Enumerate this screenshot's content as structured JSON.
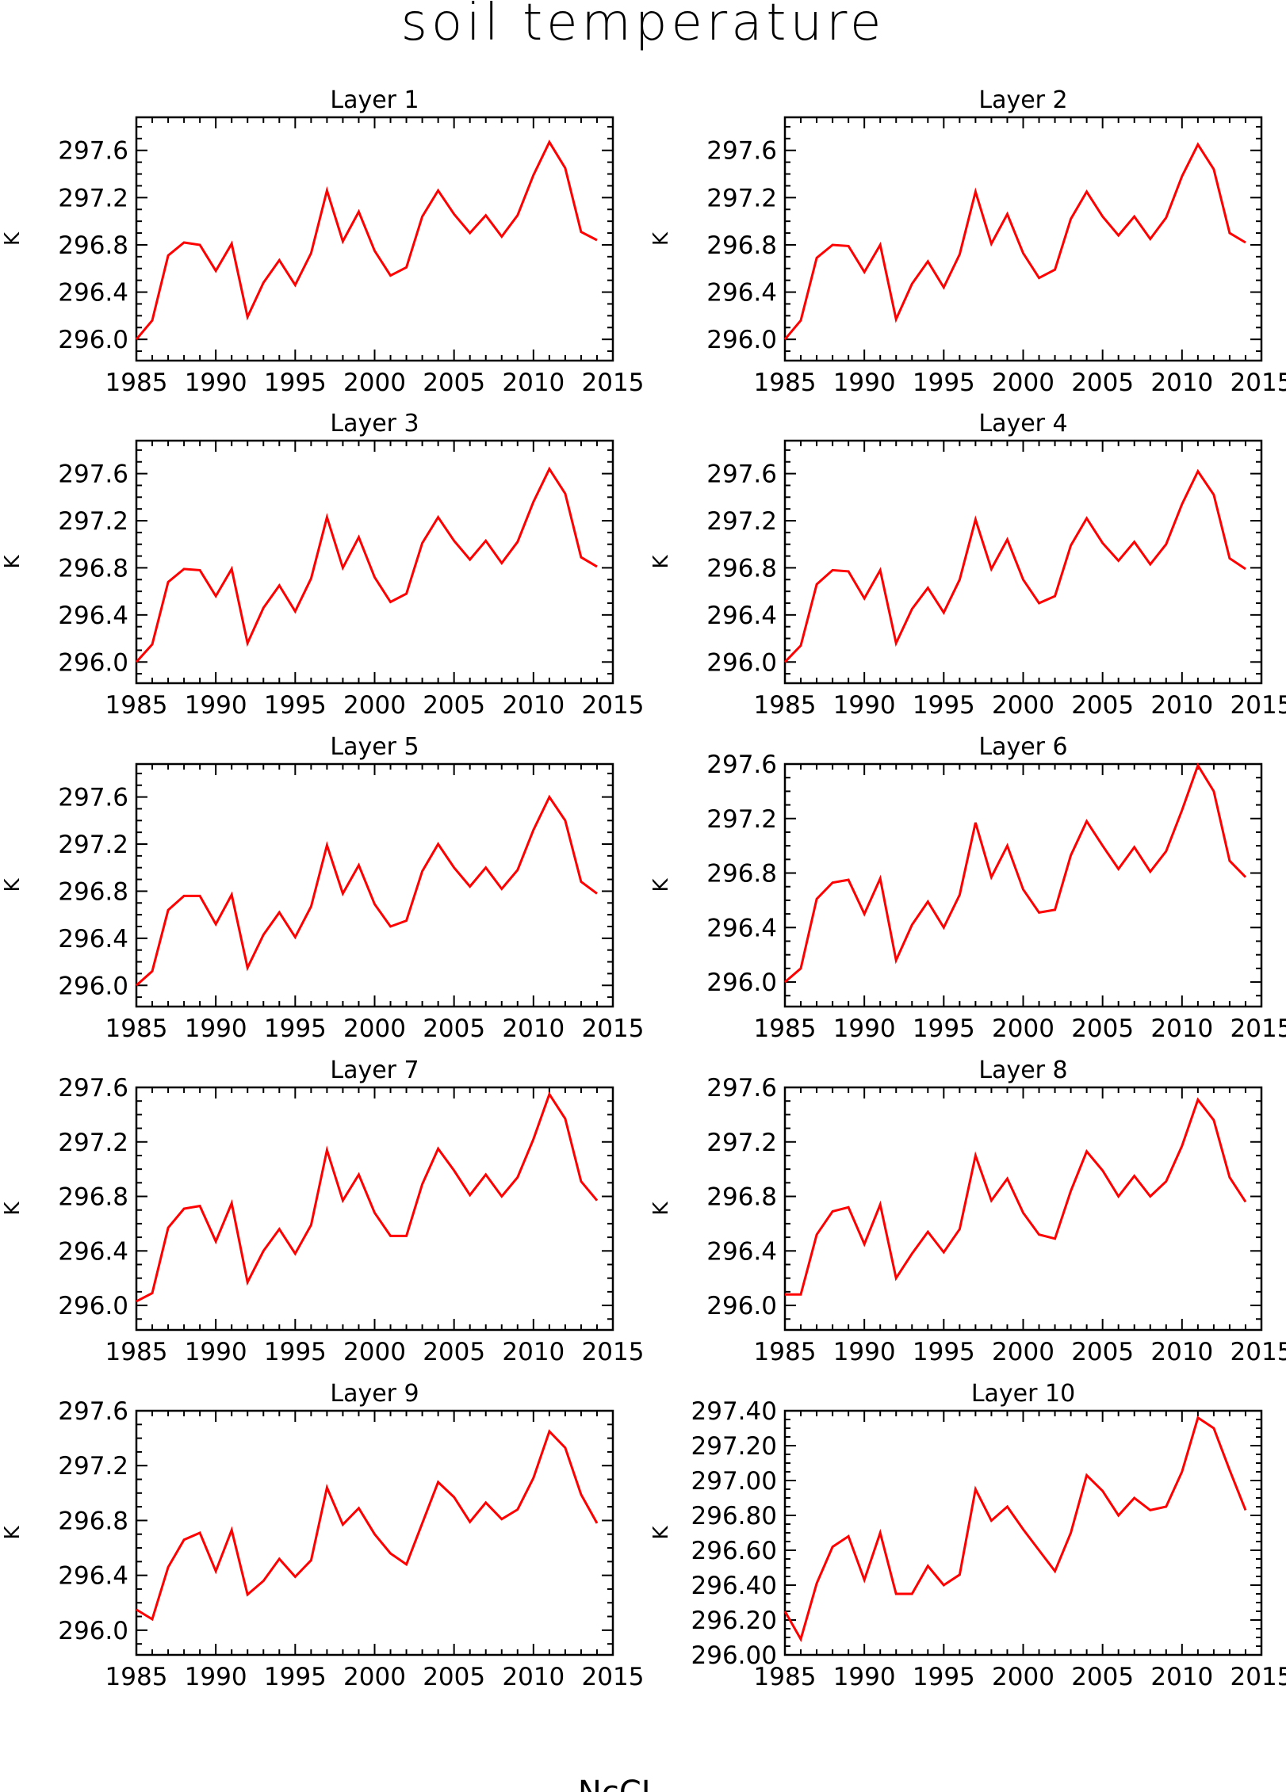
{
  "title": "soil temperature",
  "footer": "NcCL",
  "colors": {
    "line": "#ff0000",
    "axis": "#000000"
  },
  "chart_data": [
    {
      "type": "line",
      "title": "Layer 1",
      "ylabel": "K",
      "xlim": [
        1985,
        2015
      ],
      "ylim": [
        295.82,
        297.88
      ],
      "xticks": [
        1985,
        1990,
        1995,
        2000,
        2005,
        2010,
        2015
      ],
      "yticks": [
        296.0,
        296.4,
        296.8,
        297.2,
        297.6
      ],
      "ytick_labels": [
        "296.0",
        "296.4",
        "296.8",
        "297.2",
        "297.6"
      ],
      "x": [
        1985,
        1986,
        1987,
        1988,
        1989,
        1990,
        1991,
        1992,
        1993,
        1994,
        1995,
        1996,
        1997,
        1998,
        1999,
        2000,
        2001,
        2002,
        2003,
        2004,
        2005,
        2006,
        2007,
        2008,
        2009,
        2010,
        2011,
        2012,
        2013,
        2014
      ],
      "values": [
        296.0,
        296.16,
        296.71,
        296.82,
        296.8,
        296.58,
        296.81,
        296.19,
        296.48,
        296.67,
        296.46,
        296.73,
        297.26,
        296.83,
        297.08,
        296.75,
        296.54,
        296.61,
        297.04,
        297.26,
        297.06,
        296.9,
        297.05,
        296.87,
        297.05,
        297.39,
        297.67,
        297.45,
        296.91,
        296.84
      ]
    },
    {
      "type": "line",
      "title": "Layer 2",
      "ylabel": "K",
      "xlim": [
        1985,
        2015
      ],
      "ylim": [
        295.82,
        297.88
      ],
      "xticks": [
        1985,
        1990,
        1995,
        2000,
        2005,
        2010,
        2015
      ],
      "yticks": [
        296.0,
        296.4,
        296.8,
        297.2,
        297.6
      ],
      "ytick_labels": [
        "296.0",
        "296.4",
        "296.8",
        "297.2",
        "297.6"
      ],
      "x": [
        1985,
        1986,
        1987,
        1988,
        1989,
        1990,
        1991,
        1992,
        1993,
        1994,
        1995,
        1996,
        1997,
        1998,
        1999,
        2000,
        2001,
        2002,
        2003,
        2004,
        2005,
        2006,
        2007,
        2008,
        2009,
        2010,
        2011,
        2012,
        2013,
        2014
      ],
      "values": [
        296.0,
        296.16,
        296.69,
        296.8,
        296.79,
        296.57,
        296.8,
        296.17,
        296.47,
        296.66,
        296.44,
        296.72,
        297.25,
        296.81,
        297.06,
        296.73,
        296.52,
        296.59,
        297.02,
        297.25,
        297.04,
        296.88,
        297.04,
        296.85,
        297.03,
        297.38,
        297.65,
        297.44,
        296.9,
        296.82
      ]
    },
    {
      "type": "line",
      "title": "Layer 3",
      "ylabel": "K",
      "xlim": [
        1985,
        2015
      ],
      "ylim": [
        295.82,
        297.88
      ],
      "xticks": [
        1985,
        1990,
        1995,
        2000,
        2005,
        2010,
        2015
      ],
      "yticks": [
        296.0,
        296.4,
        296.8,
        297.2,
        297.6
      ],
      "ytick_labels": [
        "296.0",
        "296.4",
        "296.8",
        "297.2",
        "297.6"
      ],
      "x": [
        1985,
        1986,
        1987,
        1988,
        1989,
        1990,
        1991,
        1992,
        1993,
        1994,
        1995,
        1996,
        1997,
        1998,
        1999,
        2000,
        2001,
        2002,
        2003,
        2004,
        2005,
        2006,
        2007,
        2008,
        2009,
        2010,
        2011,
        2012,
        2013,
        2014
      ],
      "values": [
        296.0,
        296.15,
        296.68,
        296.79,
        296.78,
        296.56,
        296.79,
        296.16,
        296.46,
        296.65,
        296.43,
        296.71,
        297.23,
        296.8,
        297.06,
        296.72,
        296.51,
        296.58,
        297.01,
        297.23,
        297.03,
        296.87,
        297.03,
        296.84,
        297.02,
        297.36,
        297.64,
        297.43,
        296.89,
        296.81
      ]
    },
    {
      "type": "line",
      "title": "Layer 4",
      "ylabel": "K",
      "xlim": [
        1985,
        2015
      ],
      "ylim": [
        295.82,
        297.88
      ],
      "xticks": [
        1985,
        1990,
        1995,
        2000,
        2005,
        2010,
        2015
      ],
      "yticks": [
        296.0,
        296.4,
        296.8,
        297.2,
        297.6
      ],
      "ytick_labels": [
        "296.0",
        "296.4",
        "296.8",
        "297.2",
        "297.6"
      ],
      "x": [
        1985,
        1986,
        1987,
        1988,
        1989,
        1990,
        1991,
        1992,
        1993,
        1994,
        1995,
        1996,
        1997,
        1998,
        1999,
        2000,
        2001,
        2002,
        2003,
        2004,
        2005,
        2006,
        2007,
        2008,
        2009,
        2010,
        2011,
        2012,
        2013,
        2014
      ],
      "values": [
        296.0,
        296.14,
        296.66,
        296.78,
        296.77,
        296.54,
        296.78,
        296.16,
        296.45,
        296.63,
        296.42,
        296.7,
        297.21,
        296.79,
        297.04,
        296.7,
        296.5,
        296.56,
        296.99,
        297.22,
        297.01,
        296.86,
        297.02,
        296.83,
        297.0,
        297.34,
        297.62,
        297.42,
        296.88,
        296.79
      ]
    },
    {
      "type": "line",
      "title": "Layer 5",
      "ylabel": "K",
      "xlim": [
        1985,
        2015
      ],
      "ylim": [
        295.82,
        297.88
      ],
      "xticks": [
        1985,
        1990,
        1995,
        2000,
        2005,
        2010,
        2015
      ],
      "yticks": [
        296.0,
        296.4,
        296.8,
        297.2,
        297.6
      ],
      "ytick_labels": [
        "296.0",
        "296.4",
        "296.8",
        "297.2",
        "297.6"
      ],
      "x": [
        1985,
        1986,
        1987,
        1988,
        1989,
        1990,
        1991,
        1992,
        1993,
        1994,
        1995,
        1996,
        1997,
        1998,
        1999,
        2000,
        2001,
        2002,
        2003,
        2004,
        2005,
        2006,
        2007,
        2008,
        2009,
        2010,
        2011,
        2012,
        2013,
        2014
      ],
      "values": [
        296.0,
        296.12,
        296.64,
        296.76,
        296.76,
        296.52,
        296.77,
        296.15,
        296.43,
        296.62,
        296.41,
        296.67,
        297.19,
        296.78,
        297.02,
        296.69,
        296.5,
        296.55,
        296.97,
        297.2,
        297.0,
        296.84,
        297.0,
        296.82,
        296.98,
        297.32,
        297.6,
        297.4,
        296.88,
        296.78
      ]
    },
    {
      "type": "line",
      "title": "Layer 6",
      "ylabel": "K",
      "xlim": [
        1985,
        2015
      ],
      "ylim": [
        295.82,
        297.6
      ],
      "xticks": [
        1985,
        1990,
        1995,
        2000,
        2005,
        2010,
        2015
      ],
      "yticks": [
        296.0,
        296.4,
        296.8,
        297.2,
        297.6
      ],
      "ytick_labels": [
        "296.0",
        "296.4",
        "296.8",
        "297.2",
        "297.6"
      ],
      "x": [
        1985,
        1986,
        1987,
        1988,
        1989,
        1990,
        1991,
        1992,
        1993,
        1994,
        1995,
        1996,
        1997,
        1998,
        1999,
        2000,
        2001,
        2002,
        2003,
        2004,
        2005,
        2006,
        2007,
        2008,
        2009,
        2010,
        2011,
        2012,
        2013,
        2014
      ],
      "values": [
        296.0,
        296.1,
        296.61,
        296.73,
        296.75,
        296.5,
        296.76,
        296.16,
        296.42,
        296.59,
        296.4,
        296.64,
        297.17,
        296.77,
        297.0,
        296.68,
        296.51,
        296.53,
        296.93,
        297.18,
        297.0,
        296.83,
        296.99,
        296.81,
        296.96,
        297.26,
        297.59,
        297.4,
        296.89,
        296.77
      ]
    },
    {
      "type": "line",
      "title": "Layer 7",
      "ylabel": "K",
      "xlim": [
        1985,
        2015
      ],
      "ylim": [
        295.82,
        297.6
      ],
      "xticks": [
        1985,
        1990,
        1995,
        2000,
        2005,
        2010,
        2015
      ],
      "yticks": [
        296.0,
        296.4,
        296.8,
        297.2,
        297.6
      ],
      "ytick_labels": [
        "296.0",
        "296.4",
        "296.8",
        "297.2",
        "297.6"
      ],
      "x": [
        1985,
        1986,
        1987,
        1988,
        1989,
        1990,
        1991,
        1992,
        1993,
        1994,
        1995,
        1996,
        1997,
        1998,
        1999,
        2000,
        2001,
        2002,
        2003,
        2004,
        2005,
        2006,
        2007,
        2008,
        2009,
        2010,
        2011,
        2012,
        2013,
        2014
      ],
      "values": [
        296.03,
        296.09,
        296.57,
        296.71,
        296.73,
        296.47,
        296.75,
        296.17,
        296.4,
        296.56,
        296.38,
        296.59,
        297.14,
        296.77,
        296.96,
        296.68,
        296.51,
        296.51,
        296.89,
        297.15,
        296.99,
        296.81,
        296.96,
        296.8,
        296.94,
        297.22,
        297.55,
        297.37,
        296.91,
        296.77
      ]
    },
    {
      "type": "line",
      "title": "Layer 8",
      "ylabel": "K",
      "xlim": [
        1985,
        2015
      ],
      "ylim": [
        295.82,
        297.6
      ],
      "xticks": [
        1985,
        1990,
        1995,
        2000,
        2005,
        2010,
        2015
      ],
      "yticks": [
        296.0,
        296.4,
        296.8,
        297.2,
        297.6
      ],
      "ytick_labels": [
        "296.0",
        "296.4",
        "296.8",
        "297.2",
        "297.6"
      ],
      "x": [
        1985,
        1986,
        1987,
        1988,
        1989,
        1990,
        1991,
        1992,
        1993,
        1994,
        1995,
        1996,
        1997,
        1998,
        1999,
        2000,
        2001,
        2002,
        2003,
        2004,
        2005,
        2006,
        2007,
        2008,
        2009,
        2010,
        2011,
        2012,
        2013,
        2014
      ],
      "values": [
        296.08,
        296.08,
        296.52,
        296.69,
        296.72,
        296.45,
        296.74,
        296.2,
        296.38,
        296.54,
        296.39,
        296.56,
        297.1,
        296.77,
        296.93,
        296.68,
        296.52,
        296.49,
        296.84,
        297.13,
        296.99,
        296.8,
        296.95,
        296.8,
        296.91,
        297.17,
        297.51,
        297.36,
        296.94,
        296.76
      ]
    },
    {
      "type": "line",
      "title": "Layer 9",
      "ylabel": "K",
      "xlim": [
        1985,
        2015
      ],
      "ylim": [
        295.82,
        297.6
      ],
      "xticks": [
        1985,
        1990,
        1995,
        2000,
        2005,
        2010,
        2015
      ],
      "yticks": [
        296.0,
        296.4,
        296.8,
        297.2,
        297.6
      ],
      "ytick_labels": [
        "296.0",
        "296.4",
        "296.8",
        "297.2",
        "297.6"
      ],
      "x": [
        1985,
        1986,
        1987,
        1988,
        1989,
        1990,
        1991,
        1992,
        1993,
        1994,
        1995,
        1996,
        1997,
        1998,
        1999,
        2000,
        2001,
        2002,
        2003,
        2004,
        2005,
        2006,
        2007,
        2008,
        2009,
        2010,
        2011,
        2012,
        2013,
        2014
      ],
      "values": [
        296.15,
        296.08,
        296.46,
        296.66,
        296.71,
        296.43,
        296.73,
        296.26,
        296.36,
        296.52,
        296.39,
        296.51,
        297.04,
        296.77,
        296.89,
        296.7,
        296.56,
        296.48,
        296.78,
        297.08,
        296.97,
        296.79,
        296.93,
        296.81,
        296.88,
        297.11,
        297.45,
        297.33,
        296.99,
        296.78
      ]
    },
    {
      "type": "line",
      "title": "Layer 10",
      "ylabel": "K",
      "xlim": [
        1985,
        2015
      ],
      "ylim": [
        296.0,
        297.4
      ],
      "xticks": [
        1985,
        1990,
        1995,
        2000,
        2005,
        2010,
        2015
      ],
      "yticks": [
        296.0,
        296.2,
        296.4,
        296.6,
        296.8,
        297.0,
        297.2,
        297.4
      ],
      "ytick_labels": [
        "296.00",
        "296.20",
        "296.40",
        "296.60",
        "296.80",
        "297.00",
        "297.20",
        "297.40"
      ],
      "x": [
        1985,
        1986,
        1987,
        1988,
        1989,
        1990,
        1991,
        1992,
        1993,
        1994,
        1995,
        1996,
        1997,
        1998,
        1999,
        2000,
        2001,
        2002,
        2003,
        2004,
        2005,
        2006,
        2007,
        2008,
        2009,
        2010,
        2011,
        2012,
        2013,
        2014
      ],
      "values": [
        296.25,
        296.09,
        296.41,
        296.62,
        296.68,
        296.43,
        296.7,
        296.35,
        296.35,
        296.51,
        296.4,
        296.46,
        296.95,
        296.77,
        296.85,
        296.72,
        296.6,
        296.48,
        296.7,
        297.03,
        296.94,
        296.8,
        296.9,
        296.83,
        296.85,
        297.05,
        297.36,
        297.3,
        297.06,
        296.83
      ]
    }
  ]
}
